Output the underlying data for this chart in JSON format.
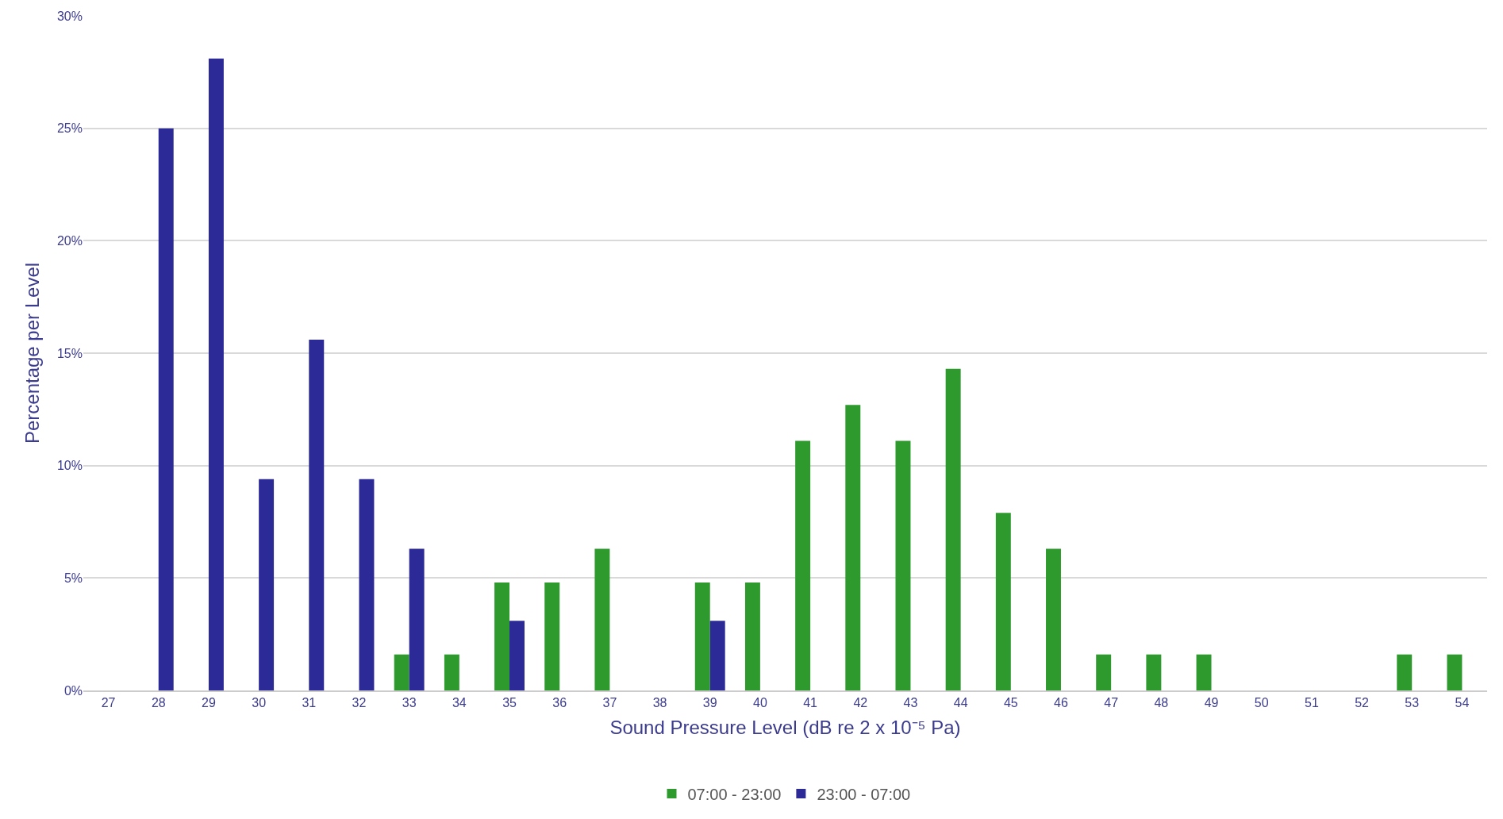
{
  "chart_data": {
    "type": "bar",
    "xlabel": "Sound Pressure Level (dB re 2 x 10⁻⁵ Pa)",
    "ylabel": "Percentage per Level",
    "categories": [
      "27",
      "28",
      "29",
      "30",
      "31",
      "32",
      "33",
      "34",
      "35",
      "36",
      "37",
      "38",
      "39",
      "40",
      "41",
      "42",
      "43",
      "44",
      "45",
      "46",
      "47",
      "48",
      "49",
      "50",
      "51",
      "52",
      "53",
      "54"
    ],
    "series": [
      {
        "name": "07:00 - 23:00",
        "color": "#2e9a2e",
        "values": [
          null,
          null,
          null,
          null,
          null,
          null,
          1.6,
          1.6,
          4.8,
          4.8,
          6.3,
          null,
          4.8,
          4.8,
          11.1,
          12.7,
          11.1,
          14.3,
          7.9,
          6.3,
          1.6,
          1.6,
          1.6,
          null,
          null,
          null,
          1.6,
          1.6
        ]
      },
      {
        "name": "23:00 - 07:00",
        "color": "#2b2a96",
        "values": [
          null,
          25,
          28.1,
          9.4,
          15.6,
          9.4,
          6.3,
          null,
          3.1,
          null,
          null,
          null,
          3.1,
          null,
          null,
          null,
          null,
          null,
          null,
          null,
          null,
          null,
          null,
          null,
          null,
          null,
          null,
          null
        ]
      }
    ],
    "ylim": [
      0,
      30
    ],
    "yticks": [
      {
        "value": 0,
        "label": "0%"
      },
      {
        "value": 5,
        "label": "5%"
      },
      {
        "value": 10,
        "label": "10%"
      },
      {
        "value": 15,
        "label": "15%"
      },
      {
        "value": 20,
        "label": "20%"
      },
      {
        "value": 25,
        "label": "25%"
      },
      {
        "value": 30,
        "label": "30%"
      }
    ],
    "grid": "y",
    "legend": "bottom"
  }
}
